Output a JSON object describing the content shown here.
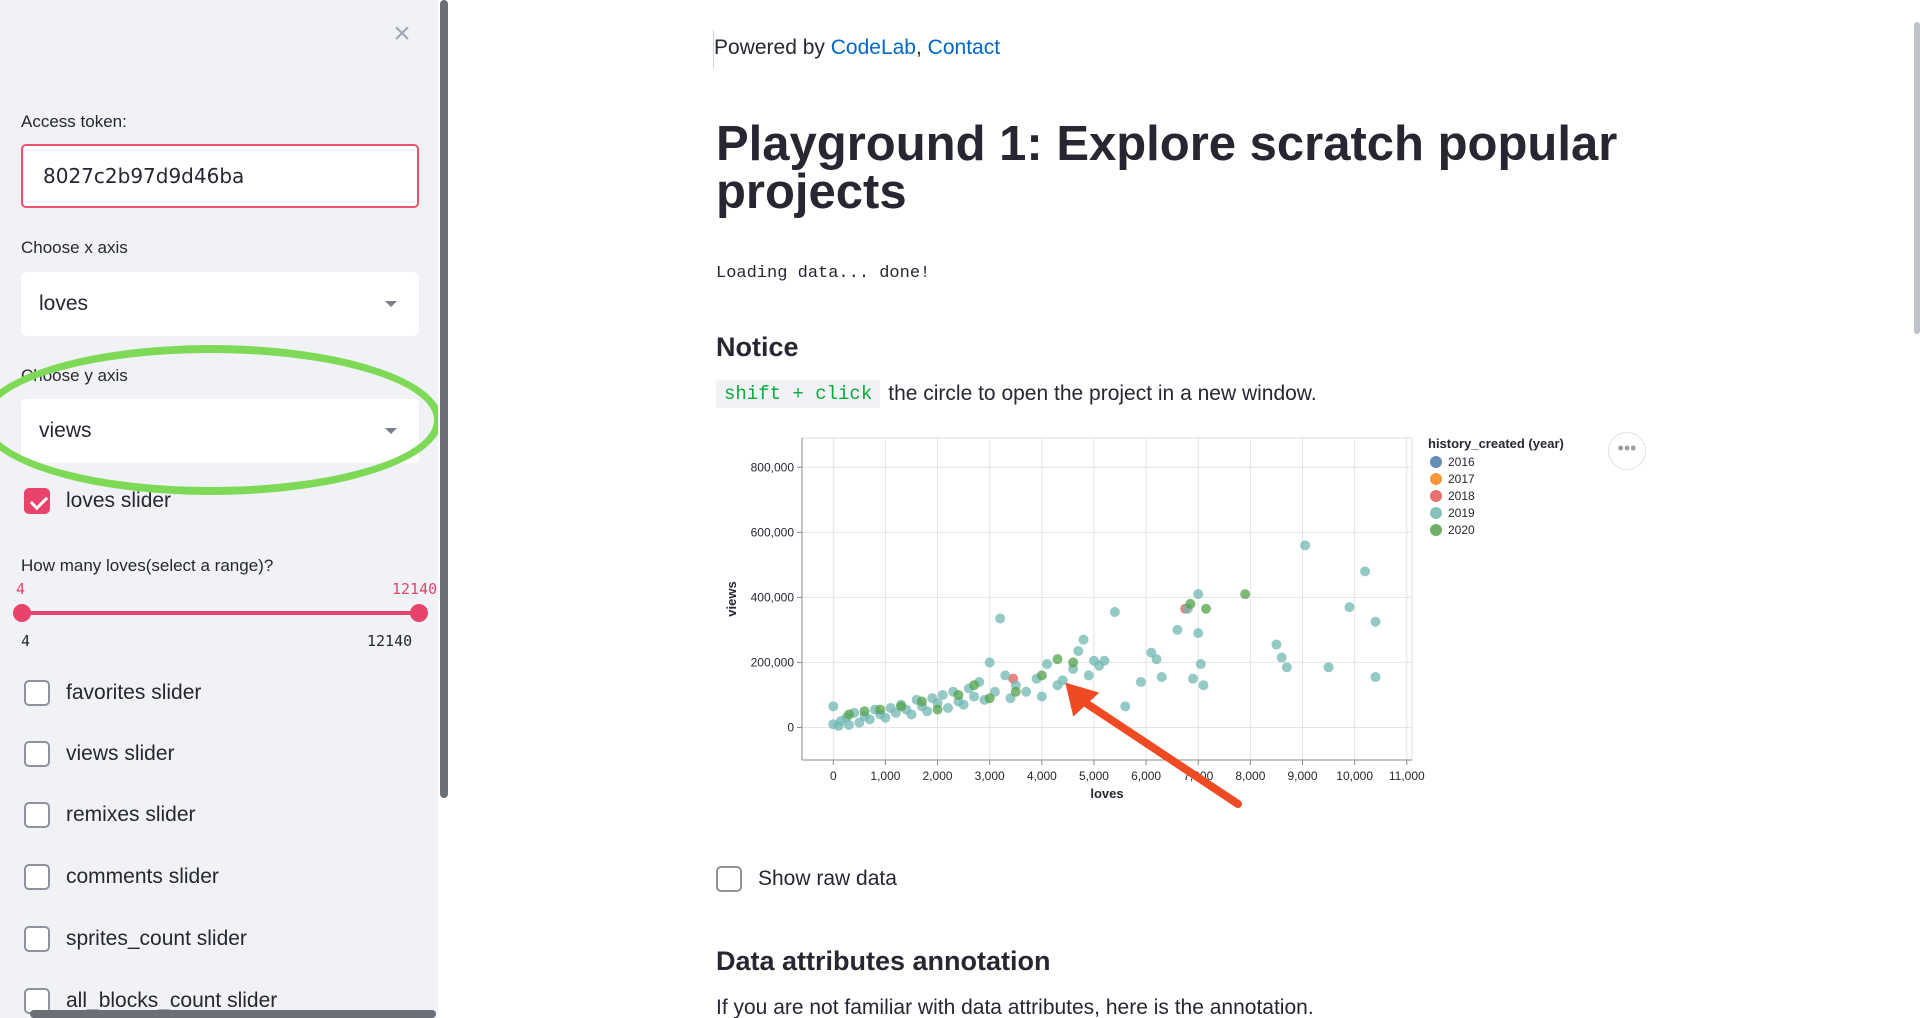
{
  "sidebar": {
    "close_glyph": "×",
    "token_label": "Access token:",
    "token_value": "8027c2b97d9d46ba",
    "x_axis_label": "Choose x axis",
    "x_axis_value": "loves",
    "y_axis_label": "Choose y axis",
    "y_axis_value": "views",
    "loves_slider_label": "loves slider",
    "loves_slider_checked": true,
    "range_question": "How many loves(select a range)?",
    "range_min": "4",
    "range_max": "12140",
    "range_min_bottom": "4",
    "range_max_bottom": "12140",
    "checkboxes": [
      "favorites slider",
      "views slider",
      "remixes slider",
      "comments slider",
      "sprites_count slider",
      "all_blocks_count slider"
    ]
  },
  "main": {
    "powered_prefix": "Powered by ",
    "link_codelab": "CodeLab",
    "separator": ",",
    "link_contact": "Contact",
    "title": "Playground 1: Explore scratch popular projects",
    "loading": "Loading data... done!",
    "notice_heading": "Notice",
    "notice_code": "shift + click",
    "notice_text": "the circle to open the project in a new window.",
    "chart_menu": "•••",
    "show_raw": "Show raw data",
    "attr_heading": "Data attributes annotation",
    "attr_desc": "If you are not familiar with data attributes, here is the annotation."
  },
  "chart_data": {
    "type": "scatter",
    "xlabel": "loves",
    "ylabel": "views",
    "xlim": [
      -600,
      11100
    ],
    "ylim": [
      -100000,
      890000
    ],
    "x_ticks": [
      "0",
      "1,000",
      "2,000",
      "3,000",
      "4,000",
      "5,000",
      "6,000",
      "7,000",
      "8,000",
      "9,000",
      "10,000",
      "11,000"
    ],
    "y_ticks": [
      "0",
      "200,000",
      "400,000",
      "600,000",
      "800,000"
    ],
    "legend_title": "history_created (year)",
    "legend_position": "right",
    "grid": true,
    "series": [
      {
        "name": "2016",
        "color": "#4c78a8",
        "points": []
      },
      {
        "name": "2017",
        "color": "#f58518",
        "points": []
      },
      {
        "name": "2018",
        "color": "#e45756",
        "points": [
          [
            3450,
            150000
          ],
          [
            6750,
            365000
          ]
        ]
      },
      {
        "name": "2019",
        "color": "#72b7b2",
        "points": [
          [
            0,
            65000
          ],
          [
            0,
            10000
          ],
          [
            100,
            5000
          ],
          [
            150,
            20000
          ],
          [
            250,
            30000
          ],
          [
            300,
            8000
          ],
          [
            400,
            45000
          ],
          [
            500,
            15000
          ],
          [
            600,
            35000
          ],
          [
            700,
            25000
          ],
          [
            800,
            55000
          ],
          [
            900,
            40000
          ],
          [
            1000,
            30000
          ],
          [
            1100,
            60000
          ],
          [
            1200,
            45000
          ],
          [
            1300,
            70000
          ],
          [
            1400,
            55000
          ],
          [
            1500,
            40000
          ],
          [
            1600,
            85000
          ],
          [
            1700,
            65000
          ],
          [
            1800,
            50000
          ],
          [
            1900,
            90000
          ],
          [
            2000,
            75000
          ],
          [
            2100,
            100000
          ],
          [
            2200,
            60000
          ],
          [
            2300,
            110000
          ],
          [
            2400,
            80000
          ],
          [
            2500,
            70000
          ],
          [
            2600,
            120000
          ],
          [
            2700,
            95000
          ],
          [
            2800,
            140000
          ],
          [
            2900,
            85000
          ],
          [
            3000,
            200000
          ],
          [
            3100,
            110000
          ],
          [
            3200,
            335000
          ],
          [
            3300,
            160000
          ],
          [
            3400,
            90000
          ],
          [
            3500,
            130000
          ],
          [
            3700,
            110000
          ],
          [
            3900,
            150000
          ],
          [
            4000,
            95000
          ],
          [
            4100,
            195000
          ],
          [
            4300,
            130000
          ],
          [
            4400,
            145000
          ],
          [
            4600,
            180000
          ],
          [
            4700,
            235000
          ],
          [
            4800,
            270000
          ],
          [
            4900,
            160000
          ],
          [
            5000,
            205000
          ],
          [
            5100,
            190000
          ],
          [
            5200,
            205000
          ],
          [
            5400,
            355000
          ],
          [
            5600,
            65000
          ],
          [
            5900,
            140000
          ],
          [
            6100,
            230000
          ],
          [
            6200,
            210000
          ],
          [
            6300,
            155000
          ],
          [
            6600,
            300000
          ],
          [
            6800,
            365000
          ],
          [
            6900,
            150000
          ],
          [
            7000,
            410000
          ],
          [
            7000,
            290000
          ],
          [
            7050,
            195000
          ],
          [
            7100,
            130000
          ],
          [
            8500,
            255000
          ],
          [
            8600,
            215000
          ],
          [
            8700,
            185000
          ],
          [
            9050,
            560000
          ],
          [
            9500,
            185000
          ],
          [
            9900,
            370000
          ],
          [
            10200,
            480000
          ],
          [
            10400,
            325000
          ],
          [
            10400,
            155000
          ]
        ]
      },
      {
        "name": "2020",
        "color": "#54a24b",
        "points": [
          [
            300,
            40000
          ],
          [
            600,
            50000
          ],
          [
            900,
            55000
          ],
          [
            1300,
            65000
          ],
          [
            1700,
            80000
          ],
          [
            2000,
            55000
          ],
          [
            2400,
            100000
          ],
          [
            2700,
            130000
          ],
          [
            3000,
            90000
          ],
          [
            3500,
            110000
          ],
          [
            4000,
            160000
          ],
          [
            4300,
            210000
          ],
          [
            4600,
            200000
          ],
          [
            6850,
            380000
          ],
          [
            7150,
            365000
          ],
          [
            7900,
            410000
          ]
        ]
      }
    ]
  }
}
